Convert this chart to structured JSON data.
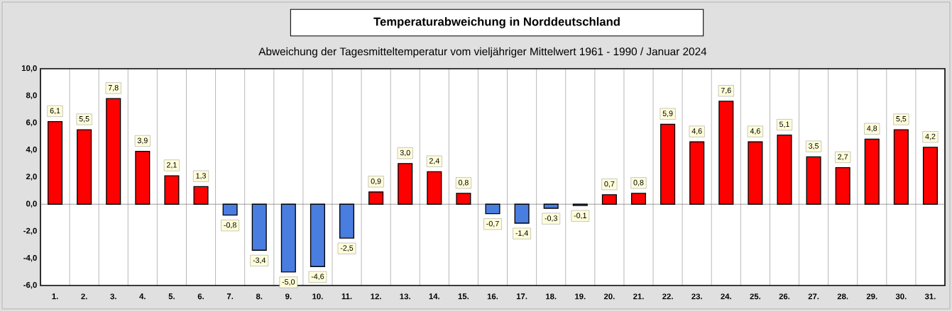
{
  "chart_data": {
    "type": "bar",
    "title": "Temperaturabweichung in Norddeutschland",
    "subtitle": "Abweichung der Tagesmitteltemperatur vom vieljähriger Mittelwert 1961 - 1990  /  Januar 2024",
    "categories": [
      "1.",
      "2.",
      "3.",
      "4.",
      "5.",
      "6.",
      "7.",
      "8.",
      "9.",
      "10.",
      "11.",
      "12.",
      "13.",
      "14.",
      "15.",
      "16.",
      "17.",
      "18.",
      "19.",
      "20.",
      "21.",
      "22.",
      "23.",
      "24.",
      "25.",
      "26.",
      "27.",
      "28.",
      "29.",
      "30.",
      "31."
    ],
    "values": [
      6.1,
      5.5,
      7.8,
      3.9,
      2.1,
      1.3,
      -0.8,
      -3.4,
      -5.0,
      -4.6,
      -2.5,
      0.9,
      3.0,
      2.4,
      0.8,
      -0.7,
      -1.4,
      -0.3,
      -0.1,
      0.7,
      0.8,
      5.9,
      4.6,
      7.6,
      4.6,
      5.1,
      3.5,
      2.7,
      4.8,
      5.5,
      4.2
    ],
    "value_labels": [
      "6,1",
      "5,5",
      "7,8",
      "3,9",
      "2,1",
      "1,3",
      "-0,8",
      "-3,4",
      "-5,0",
      "-4,6",
      "-2,5",
      "0,9",
      "3,0",
      "2,4",
      "0,8",
      "-0,7",
      "-1,4",
      "-0,3",
      "-0,1",
      "0,7",
      "0,8",
      "5,9",
      "4,6",
      "7,6",
      "4,6",
      "5,1",
      "3,5",
      "2,7",
      "4,8",
      "5,5",
      "4,2"
    ],
    "colors": [
      "#ff0000",
      "#ff0000",
      "#ff0000",
      "#ff0000",
      "#ff0000",
      "#ff0000",
      "#4a7de0",
      "#4a7de0",
      "#4a7de0",
      "#4a7de0",
      "#4a7de0",
      "#ff0000",
      "#ff0000",
      "#ff0000",
      "#ff0000",
      "#4a7de0",
      "#4a7de0",
      "#4a7de0",
      "#4a7de0",
      "#ff0000",
      "#ff0000",
      "#ff0000",
      "#ff0000",
      "#ff0000",
      "#ff0000",
      "#ff0000",
      "#ff0000",
      "#ff0000",
      "#ff0000",
      "#ff0000",
      "#ff0000"
    ],
    "ylim": [
      -6,
      10
    ],
    "yticks": [
      {
        "value": -6,
        "label": "-6,0"
      },
      {
        "value": -4,
        "label": "-4,0"
      },
      {
        "value": -2,
        "label": "-2,0"
      },
      {
        "value": 0,
        "label": "0,0"
      },
      {
        "value": 2,
        "label": "2,0"
      },
      {
        "value": 4,
        "label": "4,0"
      },
      {
        "value": 6,
        "label": "6,0"
      },
      {
        "value": 8,
        "label": "8,0"
      },
      {
        "value": 10,
        "label": "10,0"
      }
    ],
    "grid": "x"
  }
}
